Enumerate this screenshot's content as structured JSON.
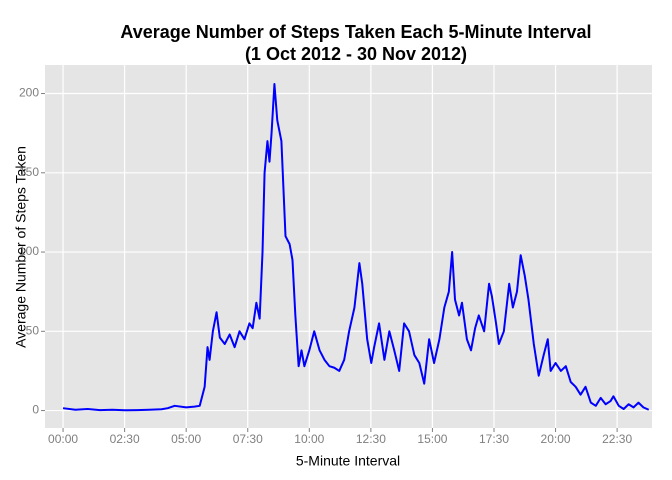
{
  "chart_data": {
    "type": "line",
    "title": "Average Number of Steps Taken Each 5-Minute Interval",
    "subtitle": "(1 Oct 2012 - 30 Nov 2012)",
    "x_label": "5-Minute Interval",
    "y_label": "Average Number of Steps Taken",
    "x": [
      0,
      30,
      60,
      90,
      120,
      150,
      180,
      210,
      240,
      255,
      272,
      300,
      320,
      333,
      345,
      352,
      357,
      365,
      374,
      382,
      394,
      406,
      418,
      430,
      442,
      454,
      462,
      471,
      479,
      486,
      491,
      498,
      503,
      508,
      515,
      522,
      532,
      542,
      552,
      559,
      566,
      574,
      581,
      588,
      600,
      612,
      625,
      637,
      649,
      661,
      673,
      685,
      697,
      710,
      722,
      729,
      741,
      751,
      758,
      770,
      783,
      795,
      807,
      819,
      831,
      843,
      856,
      868,
      880,
      892,
      904,
      917,
      929,
      940,
      948,
      955,
      965,
      972,
      984,
      994,
      1004,
      1013,
      1026,
      1038,
      1045,
      1055,
      1062,
      1074,
      1087,
      1096,
      1106,
      1115,
      1125,
      1134,
      1147,
      1159,
      1171,
      1181,
      1188,
      1200,
      1213,
      1225,
      1237,
      1249,
      1261,
      1273,
      1286,
      1298,
      1310,
      1322,
      1334,
      1341,
      1354,
      1366,
      1378,
      1390,
      1402,
      1414,
      1427
    ],
    "series": [
      {
        "name": "steps",
        "color": "#0000ff",
        "values": [
          1.5,
          0.5,
          1,
          0.3,
          0.5,
          0.2,
          0.3,
          0.5,
          0.8,
          1.5,
          3,
          2,
          2.5,
          3,
          15,
          40,
          32,
          50,
          62,
          46,
          42,
          48,
          40,
          50,
          45,
          55,
          52,
          68,
          58,
          100,
          150,
          170,
          157,
          175,
          206,
          183,
          170,
          110,
          105,
          95,
          60,
          28,
          38,
          28,
          38,
          50,
          38,
          32,
          28,
          27,
          25,
          32,
          50,
          65,
          93,
          80,
          45,
          30,
          40,
          55,
          32,
          50,
          38,
          25,
          55,
          50,
          35,
          30,
          17,
          45,
          30,
          45,
          65,
          75,
          100,
          70,
          60,
          68,
          45,
          38,
          52,
          60,
          50,
          80,
          72,
          55,
          42,
          50,
          80,
          65,
          75,
          98,
          85,
          70,
          42,
          22,
          35,
          45,
          25,
          30,
          25,
          28,
          18,
          15,
          10,
          15,
          5,
          3,
          8,
          4,
          6,
          9,
          3,
          1,
          4,
          2,
          5,
          2,
          0.5
        ]
      }
    ],
    "xlim": [
      -44,
      1435
    ],
    "xticks": [
      {
        "value": 0,
        "label": "00:00"
      },
      {
        "value": 150,
        "label": "02:30"
      },
      {
        "value": 300,
        "label": "05:00"
      },
      {
        "value": 450,
        "label": "07:30"
      },
      {
        "value": 600,
        "label": "10:00"
      },
      {
        "value": 750,
        "label": "12:30"
      },
      {
        "value": 900,
        "label": "15:00"
      },
      {
        "value": 1050,
        "label": "17:30"
      },
      {
        "value": 1200,
        "label": "20:00"
      },
      {
        "value": 1350,
        "label": "22:30"
      }
    ],
    "ylim": [
      -11,
      218
    ],
    "yticks": [
      0,
      50,
      100,
      150,
      200
    ],
    "grid": true
  }
}
